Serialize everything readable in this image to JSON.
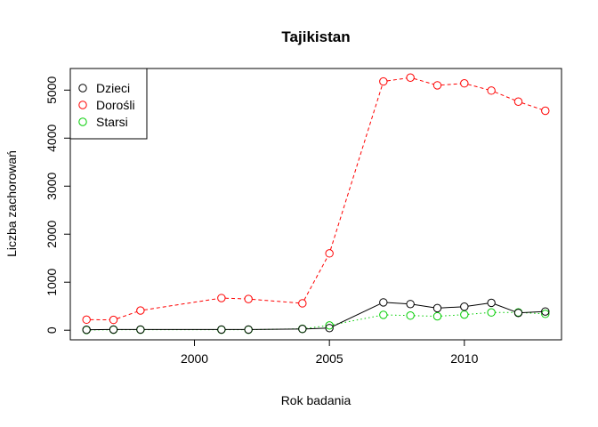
{
  "chart_data": {
    "type": "line",
    "title": "Tajikistan",
    "xlabel": "Rok badania",
    "ylabel": "Liczba zachorowań",
    "xlim": [
      1995.4,
      2013.6
    ],
    "ylim": [
      -200,
      5450
    ],
    "xticks": [
      2000,
      2005,
      2010
    ],
    "yticks": [
      0,
      1000,
      2000,
      3000,
      4000,
      5000
    ],
    "xtick_labels": [
      "2000",
      "2005",
      "2010"
    ],
    "ytick_labels": [
      "0",
      "1000",
      "2000",
      "3000",
      "4000",
      "5000"
    ],
    "grid": false,
    "legend_position": "top-left",
    "series": [
      {
        "name": "Dzieci",
        "color": "#000000",
        "dash": "solid",
        "x": [
          1996,
          1997,
          1998,
          2001,
          2002,
          2004,
          2005,
          2007,
          2008,
          2009,
          2010,
          2011,
          2012,
          2013
        ],
        "values": [
          10,
          15,
          15,
          15,
          15,
          25,
          45,
          580,
          545,
          460,
          490,
          570,
          360,
          390
        ]
      },
      {
        "name": "Dorośli",
        "color": "#ff0000",
        "dash": "dashed",
        "x": [
          1996,
          1997,
          1998,
          2001,
          2002,
          2004,
          2005,
          2007,
          2008,
          2009,
          2010,
          2011,
          2012,
          2013
        ],
        "values": [
          220,
          215,
          410,
          670,
          650,
          560,
          1600,
          5180,
          5260,
          5100,
          5140,
          4990,
          4760,
          4570
        ]
      },
      {
        "name": "Starsi",
        "color": "#00cd00",
        "dash": "dotted",
        "x": [
          1996,
          1997,
          1998,
          2001,
          2002,
          2004,
          2005,
          2007,
          2008,
          2009,
          2010,
          2011,
          2012,
          2013
        ],
        "values": [
          5,
          10,
          10,
          10,
          10,
          30,
          100,
          320,
          305,
          290,
          325,
          370,
          370,
          340
        ]
      }
    ]
  }
}
